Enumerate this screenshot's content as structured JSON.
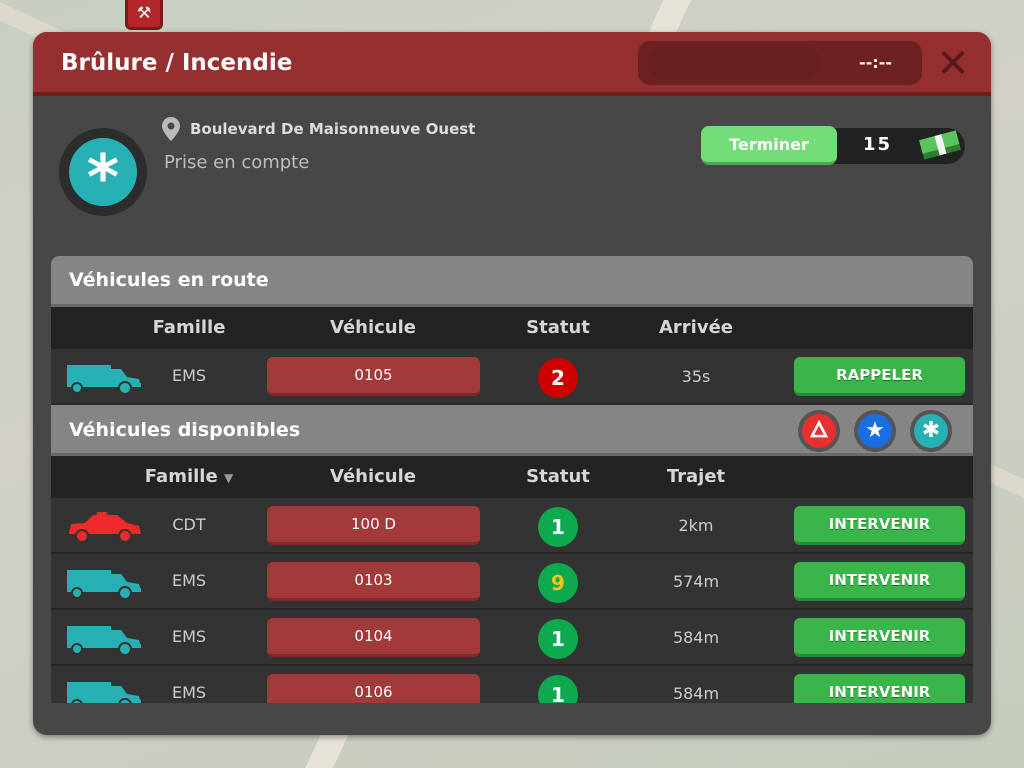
{
  "dialog": {
    "title": "Brûlure / Incendie",
    "timer": "--:--",
    "close": "✕"
  },
  "incident": {
    "address": "Boulevard De Maisonneuve Ouest",
    "state": "Prise en compte",
    "finish_label": "Terminer",
    "reward": "15"
  },
  "en_route": {
    "title": "Véhicules en route",
    "headers": [
      "Famille",
      "Véhicule",
      "Statut",
      "Arrivée"
    ],
    "rows": [
      {
        "family": "EMS",
        "vehicle": "0105",
        "status": "2",
        "arrival": "35s",
        "action": "RAPPELER",
        "icon": "ambulance",
        "icon_color": "#27b1b5",
        "status_color": "#cc0000",
        "status_text_color": "#ffffff"
      }
    ]
  },
  "available": {
    "title": "Véhicules disponibles",
    "headers": [
      "Famille",
      "Véhicule",
      "Statut",
      "Trajet"
    ],
    "filters": [
      {
        "icon": "fire-icon",
        "color": "#e83030"
      },
      {
        "icon": "star-icon",
        "color": "#1a6fe0"
      },
      {
        "icon": "asterisk-icon",
        "color": "#27b1b5"
      }
    ],
    "rows": [
      {
        "family": "CDT",
        "vehicle": "100 D",
        "status": "1",
        "distance": "2km",
        "action": "INTERVENIR",
        "icon": "car",
        "icon_color": "#ee2a2a",
        "status_color": "#0faa4f",
        "status_text_color": "#ffffff"
      },
      {
        "family": "EMS",
        "vehicle": "0103",
        "status": "9",
        "distance": "574m",
        "action": "INTERVENIR",
        "icon": "ambulance",
        "icon_color": "#27b1b5",
        "status_color": "#0faa4f",
        "status_text_color": "#f5c518"
      },
      {
        "family": "EMS",
        "vehicle": "0104",
        "status": "1",
        "distance": "584m",
        "action": "INTERVENIR",
        "icon": "ambulance",
        "icon_color": "#27b1b5",
        "status_color": "#0faa4f",
        "status_text_color": "#ffffff"
      },
      {
        "family": "EMS",
        "vehicle": "0106",
        "status": "1",
        "distance": "584m",
        "action": "INTERVENIR",
        "icon": "ambulance",
        "icon_color": "#27b1b5",
        "status_color": "#0faa4f",
        "status_text_color": "#ffffff"
      }
    ]
  }
}
